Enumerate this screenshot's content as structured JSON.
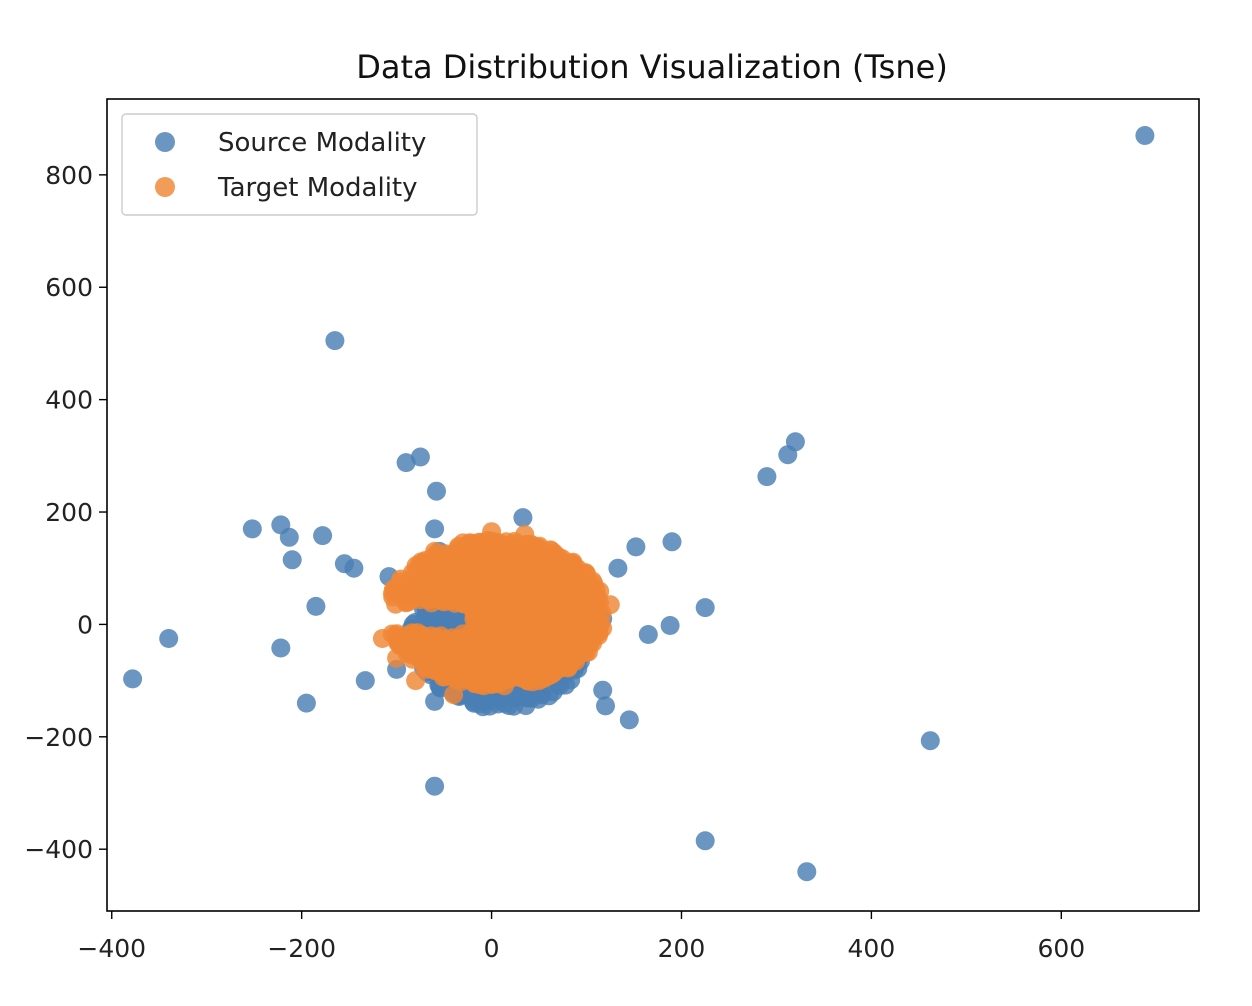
{
  "chart_data": {
    "type": "scatter",
    "title": "Data Distribution Visualization (Tsne)",
    "xlabel": "",
    "ylabel": "",
    "xlim": [
      -405,
      745
    ],
    "ylim": [
      -510,
      935
    ],
    "xticks": [
      -400,
      -200,
      0,
      200,
      400,
      600
    ],
    "xtick_labels": [
      "−400",
      "−200",
      "0",
      "200",
      "400",
      "600"
    ],
    "yticks": [
      -400,
      -200,
      0,
      200,
      400,
      600,
      800
    ],
    "ytick_labels": [
      "−400",
      "−200",
      "0",
      "200",
      "400",
      "600",
      "800"
    ],
    "grid": false,
    "legend": "upper-left",
    "series": [
      {
        "name": "Source Modality",
        "color": "#4a7fb5",
        "points": [
          [
            688,
            870
          ],
          [
            -165,
            505
          ],
          [
            320,
            325
          ],
          [
            312,
            302
          ],
          [
            290,
            263
          ],
          [
            -75,
            298
          ],
          [
            -90,
            288
          ],
          [
            -58,
            237
          ],
          [
            -252,
            170
          ],
          [
            -222,
            177
          ],
          [
            -213,
            155
          ],
          [
            -178,
            158
          ],
          [
            -210,
            115
          ],
          [
            -155,
            108
          ],
          [
            -145,
            100
          ],
          [
            -60,
            170
          ],
          [
            33,
            190
          ],
          [
            190,
            147
          ],
          [
            152,
            138
          ],
          [
            133,
            100
          ],
          [
            -108,
            85
          ],
          [
            -185,
            32
          ],
          [
            225,
            30
          ],
          [
            165,
            -18
          ],
          [
            188,
            -2
          ],
          [
            -340,
            -25
          ],
          [
            -378,
            -97
          ],
          [
            -222,
            -42
          ],
          [
            -195,
            -140
          ],
          [
            -133,
            -100
          ],
          [
            -60,
            -137
          ],
          [
            -60,
            -288
          ],
          [
            78,
            -108
          ],
          [
            117,
            -117
          ],
          [
            120,
            -145
          ],
          [
            145,
            -170
          ],
          [
            462,
            -207
          ],
          [
            225,
            -385
          ],
          [
            332,
            -440
          ],
          [
            60,
            -60
          ],
          [
            65,
            -120
          ],
          [
            117,
            10
          ],
          [
            -100,
            -80
          ],
          [
            -70,
            10
          ],
          [
            -30,
            -10
          ],
          [
            -10,
            0
          ],
          [
            -40,
            -20
          ],
          [
            -55,
            130
          ]
        ],
        "cluster": {
          "cx": 10,
          "cy": -10,
          "rx": 95,
          "ry": 140,
          "n": 700
        }
      },
      {
        "name": "Target Modality",
        "color": "#ef8636",
        "points": [
          [
            85,
            -35
          ],
          [
            35,
            160
          ],
          [
            -115,
            -25
          ],
          [
            -80,
            -100
          ],
          [
            -40,
            -125
          ],
          [
            110,
            30
          ],
          [
            125,
            35
          ],
          [
            -90,
            60
          ],
          [
            -60,
            130
          ],
          [
            -30,
            145
          ],
          [
            0,
            165
          ],
          [
            60,
            120
          ],
          [
            -100,
            -60
          ],
          [
            -20,
            -40
          ],
          [
            50,
            -100
          ]
        ],
        "cluster": {
          "cx": 5,
          "cy": 20,
          "rx": 115,
          "ry": 130,
          "n": 1400
        }
      }
    ]
  }
}
